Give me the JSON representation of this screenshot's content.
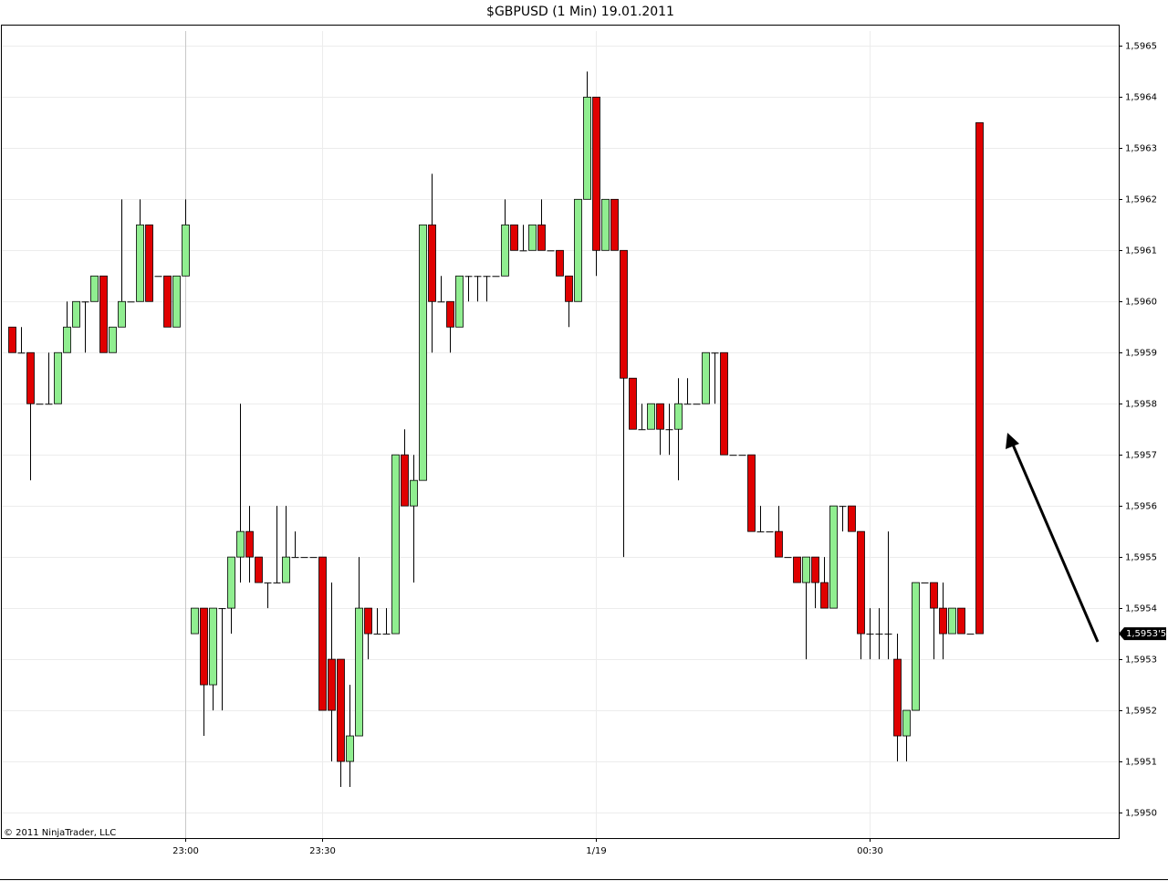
{
  "chart_data": {
    "type": "candlestick",
    "title": "$GBPUSD (1 Min)  19.01.2011",
    "footer": "© 2011 NinjaTrader, LLC",
    "categories": [
      null,
      null,
      null,
      null,
      null,
      null,
      null,
      null,
      null,
      null,
      null,
      null,
      null,
      null,
      null,
      null,
      null,
      null,
      null,
      "23:00",
      null,
      null,
      null,
      null,
      null,
      null,
      null,
      null,
      null,
      null,
      null,
      null,
      null,
      null,
      "23:30",
      null,
      null,
      null,
      null,
      null,
      null,
      null,
      null,
      null,
      null,
      null,
      null,
      null,
      null,
      null,
      null,
      null,
      null,
      null,
      null,
      null,
      null,
      null,
      null,
      null,
      null,
      null,
      null,
      null,
      "1/19",
      null,
      null,
      null,
      null,
      null,
      null,
      null,
      null,
      null,
      null,
      null,
      null,
      null,
      null,
      null,
      null,
      null,
      null,
      null,
      null,
      null,
      null,
      null,
      null,
      null,
      null,
      null,
      null,
      null,
      "00:30",
      null,
      null,
      null,
      null,
      null,
      null,
      null,
      null,
      null,
      null,
      null,
      null
    ],
    "open": [
      1.59595,
      1.5959,
      1.5959,
      1.5958,
      1.5958,
      1.5958,
      1.5959,
      1.59595,
      1.596,
      1.596,
      1.59605,
      1.5959,
      1.59595,
      1.596,
      1.596,
      1.59615,
      1.59605,
      1.59605,
      1.59595,
      1.59605,
      1.59535,
      1.5954,
      1.59525,
      1.5954,
      1.5954,
      1.5955,
      1.59555,
      1.5955,
      1.59545,
      1.59545,
      1.59545,
      1.5955,
      1.5955,
      1.5955,
      1.5955,
      1.5953,
      1.5953,
      1.5951,
      1.59515,
      1.5954,
      1.59535,
      1.59535,
      1.59535,
      1.5957,
      1.5956,
      1.59565,
      1.59615,
      1.596,
      1.596,
      1.59595,
      1.59605,
      1.59605,
      1.59605,
      1.59605,
      1.59605,
      1.59615,
      1.5961,
      1.5961,
      1.59615,
      1.5961,
      1.5961,
      1.59605,
      1.596,
      1.5962,
      1.5964,
      1.5961,
      1.5962,
      1.5961,
      1.59585,
      1.59575,
      1.59575,
      1.5958,
      1.59575,
      1.59575,
      1.5958,
      1.5958,
      1.5958,
      1.5959,
      1.5959,
      1.5957,
      1.5957,
      1.5957,
      1.59555,
      1.59555,
      1.59555,
      1.5955,
      1.5955,
      1.59545,
      1.5955,
      1.59545,
      1.5954,
      1.5956,
      1.5956,
      1.59555,
      1.59535,
      1.59535,
      1.59535,
      1.5953,
      1.59515,
      1.5952,
      1.59545,
      1.59545,
      1.5954,
      1.59535,
      1.5954,
      1.59535,
      1.59635
    ],
    "high": [
      1.59595,
      1.59595,
      1.5959,
      1.5958,
      1.5959,
      1.5959,
      1.596,
      1.596,
      1.596,
      1.59605,
      1.59605,
      1.59595,
      1.5962,
      1.596,
      1.5962,
      1.59615,
      1.59605,
      1.59605,
      1.59605,
      1.5962,
      1.5954,
      1.5954,
      1.5954,
      1.5954,
      1.5955,
      1.5958,
      1.5956,
      1.5955,
      1.59545,
      1.5956,
      1.5956,
      1.59555,
      1.5955,
      1.5955,
      1.5955,
      1.59545,
      1.5953,
      1.59525,
      1.5955,
      1.5954,
      1.5954,
      1.5954,
      1.5957,
      1.59575,
      1.5957,
      1.59615,
      1.59625,
      1.59605,
      1.596,
      1.59605,
      1.59605,
      1.59605,
      1.59605,
      1.59605,
      1.5962,
      1.59615,
      1.59615,
      1.59615,
      1.5962,
      1.5961,
      1.5961,
      1.59605,
      1.5962,
      1.59645,
      1.5964,
      1.5962,
      1.5962,
      1.5961,
      1.59585,
      1.5958,
      1.5958,
      1.5958,
      1.5958,
      1.59585,
      1.59585,
      1.5958,
      1.5959,
      1.5959,
      1.5959,
      1.5957,
      1.5957,
      1.5957,
      1.5956,
      1.59555,
      1.5956,
      1.5955,
      1.5955,
      1.5955,
      1.5955,
      1.5955,
      1.5956,
      1.5956,
      1.5956,
      1.59555,
      1.5954,
      1.5954,
      1.59555,
      1.59535,
      1.5952,
      1.59545,
      1.59545,
      1.59545,
      1.59545,
      1.5954,
      1.5954,
      1.59535,
      1.59635
    ],
    "low": [
      1.5959,
      1.5959,
      1.59565,
      1.5958,
      1.5958,
      1.5958,
      1.5959,
      1.59595,
      1.5959,
      1.596,
      1.5959,
      1.5959,
      1.59595,
      1.596,
      1.596,
      1.596,
      1.59605,
      1.59595,
      1.59595,
      1.59605,
      1.59535,
      1.59515,
      1.5952,
      1.5952,
      1.59535,
      1.59545,
      1.59545,
      1.59545,
      1.5954,
      1.59545,
      1.59545,
      1.5955,
      1.5955,
      1.5955,
      1.5952,
      1.5951,
      1.59505,
      1.59505,
      1.59515,
      1.5953,
      1.59535,
      1.59535,
      1.59535,
      1.5956,
      1.59545,
      1.59565,
      1.5959,
      1.596,
      1.5959,
      1.59595,
      1.596,
      1.596,
      1.596,
      1.59605,
      1.59605,
      1.5961,
      1.5961,
      1.5961,
      1.5961,
      1.5961,
      1.59605,
      1.59595,
      1.596,
      1.5962,
      1.59605,
      1.5961,
      1.5961,
      1.5955,
      1.59575,
      1.59575,
      1.59575,
      1.5957,
      1.5957,
      1.59565,
      1.5958,
      1.5958,
      1.5958,
      1.5958,
      1.5957,
      1.5957,
      1.5957,
      1.59555,
      1.59555,
      1.59555,
      1.5955,
      1.5955,
      1.59545,
      1.5953,
      1.5954,
      1.5954,
      1.5954,
      1.59555,
      1.59555,
      1.5953,
      1.5953,
      1.5953,
      1.5953,
      1.5951,
      1.5951,
      1.5952,
      1.59545,
      1.5953,
      1.5953,
      1.59535,
      1.59535,
      1.59535,
      1.59535
    ],
    "close": [
      1.5959,
      1.5959,
      1.5958,
      1.5958,
      1.5958,
      1.5959,
      1.59595,
      1.596,
      1.596,
      1.59605,
      1.5959,
      1.59595,
      1.596,
      1.596,
      1.59615,
      1.596,
      1.59605,
      1.59595,
      1.59605,
      1.59615,
      1.5954,
      1.59525,
      1.5954,
      1.5954,
      1.5955,
      1.59555,
      1.5955,
      1.59545,
      1.59545,
      1.59545,
      1.5955,
      1.5955,
      1.5955,
      1.5955,
      1.5952,
      1.5952,
      1.5951,
      1.59515,
      1.5954,
      1.59535,
      1.59535,
      1.59535,
      1.5957,
      1.5956,
      1.59565,
      1.59615,
      1.596,
      1.596,
      1.59595,
      1.59605,
      1.59605,
      1.59605,
      1.59605,
      1.59605,
      1.59615,
      1.5961,
      1.5961,
      1.59615,
      1.5961,
      1.5961,
      1.59605,
      1.596,
      1.5962,
      1.5964,
      1.5961,
      1.5962,
      1.5961,
      1.59585,
      1.59575,
      1.59575,
      1.5958,
      1.59575,
      1.59575,
      1.5958,
      1.5958,
      1.5958,
      1.5959,
      1.5959,
      1.5957,
      1.5957,
      1.5957,
      1.59555,
      1.59555,
      1.59555,
      1.5955,
      1.5955,
      1.59545,
      1.5955,
      1.59545,
      1.5954,
      1.5956,
      1.5956,
      1.59555,
      1.59535,
      1.59535,
      1.59535,
      1.59535,
      1.59515,
      1.5952,
      1.59545,
      1.59545,
      1.5954,
      1.59535,
      1.5954,
      1.59535,
      1.59535,
      1.59535
    ],
    "up_color": "#90ee90",
    "down_color": "#e00000",
    "ylim": [
      1.59495,
      1.59654
    ],
    "yticks": [
      {
        "value": 1.595,
        "label": "1,5950"
      },
      {
        "value": 1.5951,
        "label": "1,5951"
      },
      {
        "value": 1.5952,
        "label": "1,5952"
      },
      {
        "value": 1.5953,
        "label": "1,5953"
      },
      {
        "value": 1.5954,
        "label": "1,5954"
      },
      {
        "value": 1.5955,
        "label": "1,5955"
      },
      {
        "value": 1.5956,
        "label": "1,5956"
      },
      {
        "value": 1.5957,
        "label": "1,5957"
      },
      {
        "value": 1.5958,
        "label": "1,5958"
      },
      {
        "value": 1.5959,
        "label": "1,5959"
      },
      {
        "value": 1.596,
        "label": "1,5960"
      },
      {
        "value": 1.5961,
        "label": "1,5961"
      },
      {
        "value": 1.5962,
        "label": "1,5962"
      },
      {
        "value": 1.5963,
        "label": "1,5963"
      },
      {
        "value": 1.5964,
        "label": "1,5964"
      },
      {
        "value": 1.5965,
        "label": "1,5965"
      }
    ],
    "last_price": {
      "value": 1.59535,
      "label": "1,5953'5"
    },
    "grid": true
  }
}
